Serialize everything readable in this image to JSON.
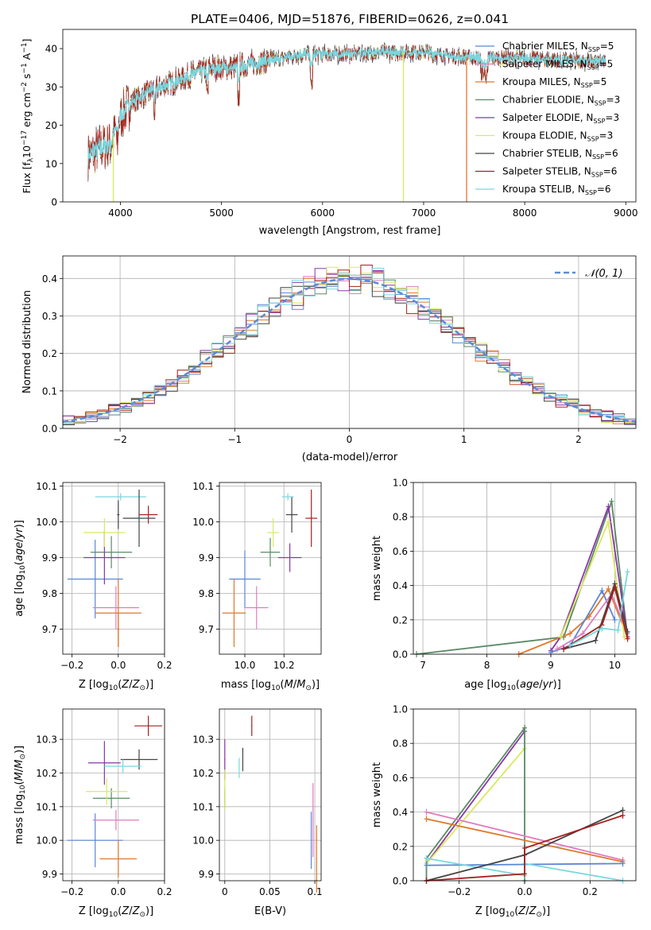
{
  "colors": {
    "Chabrier MILES": "#5b86d6",
    "Salpeter MILES": "#e07bbf",
    "Kroupa MILES": "#e0782b",
    "Chabrier ELODIE": "#5a8a64",
    "Salpeter ELODIE": "#8a35a8",
    "Kroupa ELODIE": "#d8ea5c",
    "Chabrier STELIB": "#444444",
    "Salpeter STELIB": "#a81f1f",
    "Kroupa STELIB": "#78d8df",
    "normal": "#5b8ad6"
  },
  "chart_data": [
    {
      "id": "spectrum",
      "type": "line",
      "title": "PLATE=0406, MJD=51876, FIBERID=0626, z=0.041",
      "xlabel": "wavelength [Angstrom, rest frame]",
      "ylabel": "Flux [fλ10⁻¹⁷ erg cm⁻² s⁻¹ A⁻¹]",
      "xlim": [
        3430,
        9100
      ],
      "ylim": [
        0,
        45
      ],
      "xticks": [
        4000,
        5000,
        6000,
        7000,
        8000,
        9000
      ],
      "yticks": [
        0,
        10,
        20,
        30,
        40
      ],
      "grid": false,
      "legend_position": "top-right",
      "legend": [
        "Chabrier MILES, N$SSP$=5",
        "Salpeter MILES, N$SSP$=5",
        "Kroupa MILES, N$SSP$=5",
        "Chabrier ELODIE, N$SSP$=3",
        "Salpeter ELODIE, N$SSP$=3",
        "Kroupa ELODIE, N$SSP$=3",
        "Chabrier STELIB, N$SSP$=6",
        "Salpeter STELIB, N$SSP$=6",
        "Kroupa STELIB, N$SSP$=6"
      ],
      "continuum": {
        "x": [
          3680,
          3800,
          3900,
          4000,
          4100,
          4300,
          4500,
          4700,
          4900,
          5100,
          5300,
          5500,
          5800,
          6000,
          6200,
          6500,
          7000,
          7300,
          7600,
          8000,
          8400,
          8800
        ],
        "y": [
          12,
          14,
          15,
          22,
          26,
          29,
          31,
          33,
          35,
          35,
          36,
          37,
          38.5,
          38.5,
          38.5,
          39,
          39,
          38,
          37.5,
          37.5,
          37,
          36.5
        ]
      },
      "drops": [
        {
          "series": "Kroupa ELODIE",
          "x": 3930
        },
        {
          "series": "Kroupa ELODIE",
          "x": 6800
        },
        {
          "series": "Kroupa MILES",
          "x": 7425
        }
      ]
    },
    {
      "id": "residuals",
      "type": "histogram",
      "xlabel": "(data-model)/error",
      "ylabel": "Normed distribution",
      "xlim": [
        -2.5,
        2.5
      ],
      "ylim": [
        0,
        0.46
      ],
      "xticks": [
        -2,
        -1,
        0,
        1,
        2
      ],
      "yticks": [
        0,
        0.1,
        0.2,
        0.3,
        0.4
      ],
      "bin_width": 0.1,
      "grid": true,
      "legend_position": "upper-right",
      "legend": [
        "$\\mathcal{N}(0, 1)$"
      ]
    },
    {
      "id": "z-age",
      "type": "errorbar",
      "xlabel": "Z [log₁₀(Z/Z⊙)]",
      "ylabel": "age  [log₁₀(age/yr)]",
      "xlim": [
        -0.24,
        0.2
      ],
      "ylim": [
        9.63,
        10.11
      ],
      "xticks": [
        -0.2,
        0.0,
        0.2
      ],
      "yticks": [
        9.7,
        9.8,
        9.9,
        10.0,
        10.1
      ],
      "grid": true,
      "points": [
        {
          "series": "Chabrier MILES",
          "x": -0.1,
          "xerr": 0.12,
          "y": 9.84,
          "yerr": 0.11
        },
        {
          "series": "Salpeter MILES",
          "x": -0.01,
          "xerr": 0.1,
          "y": 9.76,
          "yerr": 0.06
        },
        {
          "series": "Kroupa MILES",
          "x": 0.0,
          "xerr": 0.1,
          "y": 9.745,
          "yerr": 0.095
        },
        {
          "series": "Chabrier ELODIE",
          "x": -0.03,
          "xerr": 0.09,
          "y": 9.915,
          "yerr": 0.045
        },
        {
          "series": "Salpeter ELODIE",
          "x": -0.06,
          "xerr": 0.09,
          "y": 9.9,
          "yerr": 0.075
        },
        {
          "series": "Kroupa ELODIE",
          "x": -0.06,
          "xerr": 0.09,
          "y": 9.97,
          "yerr": 0.04
        },
        {
          "series": "Chabrier STELIB",
          "x": 0.0,
          "xerr": 0.005,
          "y": 10.02,
          "yerr": 0.04
        },
        {
          "series": "Salpeter STELIB",
          "x": 0.13,
          "xerr": 0.04,
          "y": 10.02,
          "yerr": 0.025
        },
        {
          "series": "Kroupa STELIB",
          "x": 0.01,
          "xerr": 0.11,
          "y": 10.07,
          "yerr": 0.01
        },
        {
          "series": "Chabrier STELIB",
          "x": 0.09,
          "xerr": 0.07,
          "y": 10.01,
          "yerr": 0.08
        },
        {
          "series": "Kroupa MILES",
          "x": 0.0,
          "xerr": 0.005,
          "y": 9.7,
          "yerr": 0.05
        }
      ]
    },
    {
      "id": "mass-age",
      "type": "errorbar",
      "xlabel": "mass [log₁₀(M/M⊙)]",
      "ylabel": "",
      "xlim": [
        9.87,
        10.39
      ],
      "ylim": [
        9.63,
        10.11
      ],
      "xticks": [
        10.0,
        10.2
      ],
      "yticks": [
        9.7,
        9.8,
        9.9,
        10.0,
        10.1
      ],
      "grid": true,
      "points": [
        {
          "series": "Chabrier MILES",
          "x": 10.0,
          "xerr": 0.08,
          "y": 9.84,
          "yerr": 0.08
        },
        {
          "series": "Salpeter MILES",
          "x": 10.06,
          "xerr": 0.06,
          "y": 9.76,
          "yerr": 0.06
        },
        {
          "series": "Kroupa MILES",
          "x": 9.945,
          "xerr": 0.06,
          "y": 9.745,
          "yerr": 0.095
        },
        {
          "series": "Chabrier ELODIE",
          "x": 10.13,
          "xerr": 0.05,
          "y": 9.915,
          "yerr": 0.04
        },
        {
          "series": "Salpeter ELODIE",
          "x": 10.23,
          "xerr": 0.06,
          "y": 9.9,
          "yerr": 0.04
        },
        {
          "series": "Kroupa ELODIE",
          "x": 10.145,
          "xerr": 0.03,
          "y": 9.97,
          "yerr": 0.04
        },
        {
          "series": "Chabrier STELIB",
          "x": 10.24,
          "xerr": 0.03,
          "y": 10.02,
          "yerr": 0.05
        },
        {
          "series": "Salpeter STELIB",
          "x": 10.34,
          "xerr": 0.03,
          "y": 10.01,
          "yerr": 0.08
        },
        {
          "series": "Kroupa STELIB",
          "x": 10.22,
          "xerr": 0.03,
          "y": 10.07,
          "yerr": 0.01
        }
      ]
    },
    {
      "id": "age-weight",
      "type": "line",
      "xlabel": "age  [log₁₀(age/yr)]",
      "ylabel": "mass weight",
      "xlim": [
        6.85,
        10.33
      ],
      "ylim": [
        0,
        1.0
      ],
      "xticks": [
        7,
        8,
        9,
        10
      ],
      "yticks": [
        0.0,
        0.2,
        0.4,
        0.6,
        0.8,
        1.0
      ],
      "grid": true,
      "series": [
        {
          "series": "Chabrier ELODIE",
          "x": [
            6.9,
            9.2,
            9.95,
            10.2
          ],
          "y": [
            0.0,
            0.1,
            0.89,
            0.1
          ]
        },
        {
          "series": "Kroupa MILES",
          "x": [
            8.5,
            9.3,
            9.6,
            9.9,
            10.2
          ],
          "y": [
            0.0,
            0.12,
            0.22,
            0.38,
            0.1
          ]
        },
        {
          "series": "Salpeter ELODIE",
          "x": [
            9.0,
            9.15,
            9.9,
            10.2
          ],
          "y": [
            0.02,
            0.1,
            0.86,
            0.1
          ]
        },
        {
          "series": "Kroupa ELODIE",
          "x": [
            9.15,
            9.9,
            10.15
          ],
          "y": [
            0.1,
            0.77,
            0.1
          ]
        },
        {
          "series": "Chabrier MILES",
          "x": [
            9.0,
            9.3,
            9.8,
            10.0
          ],
          "y": [
            0.01,
            0.05,
            0.37,
            0.2
          ]
        },
        {
          "series": "Salpeter MILES",
          "x": [
            9.1,
            9.5,
            9.95,
            10.2
          ],
          "y": [
            0.03,
            0.12,
            0.35,
            0.12
          ]
        },
        {
          "series": "Chabrier STELIB",
          "x": [
            9.2,
            9.7,
            10.0,
            10.2
          ],
          "y": [
            0.03,
            0.08,
            0.41,
            0.13
          ]
        },
        {
          "series": "Salpeter STELIB",
          "x": [
            9.2,
            9.8,
            10.0,
            10.2
          ],
          "y": [
            0.03,
            0.17,
            0.39,
            0.09
          ]
        },
        {
          "series": "Kroupa STELIB",
          "x": [
            9.3,
            9.8,
            10.05,
            10.2
          ],
          "y": [
            0.05,
            0.15,
            0.14,
            0.48
          ]
        }
      ]
    },
    {
      "id": "z-mass",
      "type": "errorbar",
      "xlabel": "Z [log₁₀(Z/Z⊙)]",
      "ylabel": "mass [log₁₀(M/M⊙)]",
      "xlim": [
        -0.24,
        0.2
      ],
      "ylim": [
        9.88,
        10.39
      ],
      "xticks": [
        -0.2,
        0.0,
        0.2
      ],
      "yticks": [
        9.9,
        10.0,
        10.1,
        10.2,
        10.3
      ],
      "grid": true,
      "points": [
        {
          "series": "Chabrier MILES",
          "x": -0.1,
          "xerr": 0.12,
          "y": 10.0,
          "yerr": 0.08
        },
        {
          "series": "Salpeter MILES",
          "x": -0.01,
          "xerr": 0.1,
          "y": 10.06,
          "yerr": 0.03
        },
        {
          "series": "Kroupa MILES",
          "x": 0.0,
          "xerr": 0.08,
          "y": 9.945,
          "yerr": 0.055
        },
        {
          "series": "Chabrier ELODIE",
          "x": -0.03,
          "xerr": 0.08,
          "y": 10.125,
          "yerr": 0.03
        },
        {
          "series": "Salpeter ELODIE",
          "x": -0.06,
          "xerr": 0.07,
          "y": 10.23,
          "yerr": 0.065
        },
        {
          "series": "Kroupa ELODIE",
          "x": -0.05,
          "xerr": 0.09,
          "y": 10.145,
          "yerr": 0.04
        },
        {
          "series": "Chabrier STELIB",
          "x": 0.09,
          "xerr": 0.08,
          "y": 10.24,
          "yerr": 0.03
        },
        {
          "series": "Salpeter STELIB",
          "x": 0.13,
          "xerr": 0.06,
          "y": 10.34,
          "yerr": 0.03
        },
        {
          "series": "Kroupa STELIB",
          "x": 0.02,
          "xerr": 0.08,
          "y": 10.22,
          "yerr": 0.02
        }
      ]
    },
    {
      "id": "ebv-mass",
      "type": "errorbar",
      "xlabel": "E(B-V)",
      "ylabel": "",
      "xlim": [
        -0.006,
        0.107
      ],
      "ylim": [
        9.88,
        10.39
      ],
      "xticks": [
        0.0,
        0.05,
        0.1
      ],
      "yticks": [
        9.9,
        10.0,
        10.1,
        10.2,
        10.3
      ],
      "grid": true,
      "points": [
        {
          "series": "Chabrier MILES",
          "x": 0.096,
          "xerr": 0.0005,
          "y": 10.0,
          "yerr": 0.085
        },
        {
          "series": "Salpeter MILES",
          "x": 0.098,
          "xerr": 0.0005,
          "y": 10.06,
          "yerr": 0.11
        },
        {
          "series": "Kroupa MILES",
          "x": 0.102,
          "xerr": 0.0005,
          "y": 9.945,
          "yerr": 0.1
        },
        {
          "series": "Chabrier ELODIE",
          "x": 0.0,
          "xerr": 0.0005,
          "y": 10.125,
          "yerr": 0.03
        },
        {
          "series": "Salpeter ELODIE",
          "x": 0.0,
          "xerr": 0.0005,
          "y": 10.24,
          "yerr": 0.06
        },
        {
          "series": "Kroupa ELODIE",
          "x": 0.0,
          "xerr": 0.0005,
          "y": 10.15,
          "yerr": 0.06
        },
        {
          "series": "Chabrier STELIB",
          "x": 0.02,
          "xerr": 0.0005,
          "y": 10.24,
          "yerr": 0.035
        },
        {
          "series": "Salpeter STELIB",
          "x": 0.03,
          "xerr": 0.0005,
          "y": 10.34,
          "yerr": 0.03
        },
        {
          "series": "Kroupa STELIB",
          "x": 0.016,
          "xerr": 0.0005,
          "y": 10.215,
          "yerr": 0.03
        }
      ]
    },
    {
      "id": "z-weight",
      "type": "line",
      "xlabel": "Z [log₁₀(Z/Z⊙)]",
      "ylabel": "mass weight",
      "xlim": [
        -0.34,
        0.34
      ],
      "ylim": [
        0,
        1.0
      ],
      "xticks": [
        -0.2,
        0.0,
        0.2
      ],
      "yticks": [
        0.0,
        0.2,
        0.4,
        0.6,
        0.8,
        1.0
      ],
      "grid": true,
      "series": [
        {
          "series": "Salpeter ELODIE",
          "x": [
            -0.3,
            0.0
          ],
          "y": [
            0.1,
            0.87
          ]
        },
        {
          "series": "Kroupa ELODIE",
          "x": [
            -0.3,
            0.0
          ],
          "y": [
            0.1,
            0.77
          ]
        },
        {
          "series": "Chabrier ELODIE",
          "x": [
            -0.3,
            -0.3,
            0.0,
            0.0
          ],
          "y": [
            0.0,
            0.13,
            0.89,
            0.0
          ]
        },
        {
          "series": "Salpeter MILES",
          "x": [
            -0.3,
            0.3
          ],
          "y": [
            0.4,
            0.12
          ]
        },
        {
          "series": "Kroupa MILES",
          "x": [
            -0.3,
            0.3
          ],
          "y": [
            0.36,
            0.11
          ]
        },
        {
          "series": "Chabrier MILES",
          "x": [
            -0.3,
            0.3
          ],
          "y": [
            0.09,
            0.1
          ]
        },
        {
          "series": "Kroupa STELIB",
          "x": [
            -0.3,
            0.0,
            0.0,
            0.3
          ],
          "y": [
            0.13,
            0.03,
            0.1,
            0.0
          ]
        },
        {
          "series": "Chabrier STELIB",
          "x": [
            -0.3,
            0.0,
            0.3
          ],
          "y": [
            0.0,
            0.15,
            0.41
          ]
        },
        {
          "series": "Salpeter STELIB",
          "x": [
            -0.3,
            0.0,
            0.0,
            0.3
          ],
          "y": [
            0.0,
            0.04,
            0.19,
            0.38
          ]
        }
      ]
    }
  ]
}
